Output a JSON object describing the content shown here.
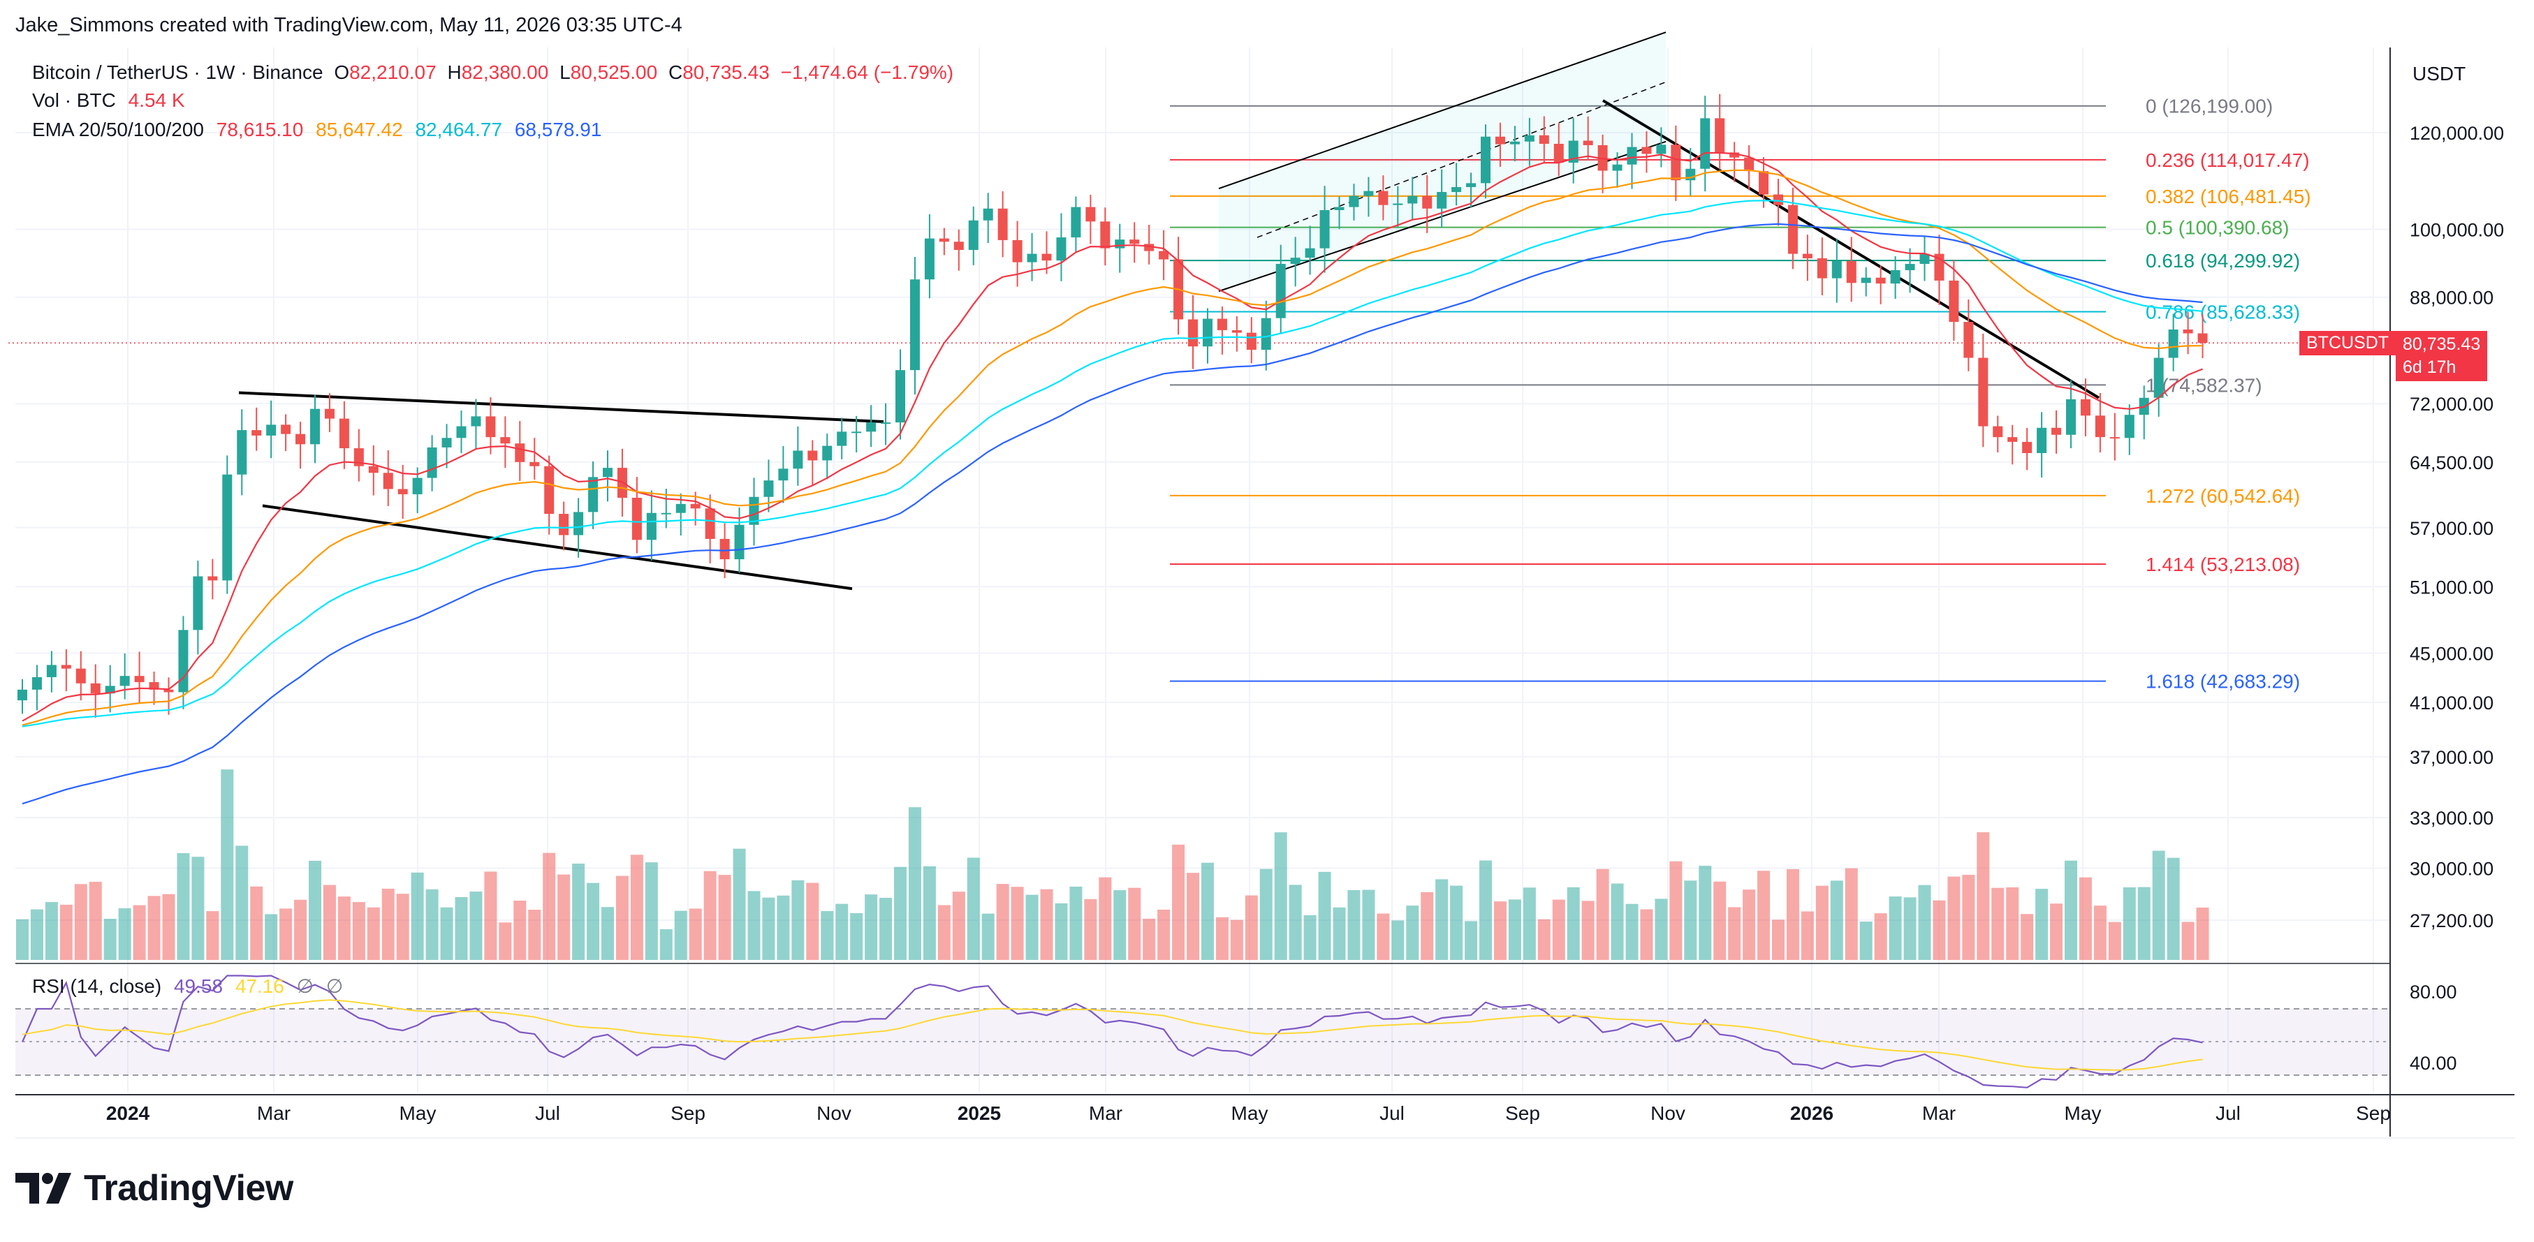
{
  "credit": "Jake_Simmons created with TradingView.com, May 11, 2026 03:35 UTC-4",
  "symbol": {
    "name": "Bitcoin / TetherUS · 1W · Binance",
    "o_label": "O",
    "o": "82,210.07",
    "h_label": "H",
    "h": "82,380.00",
    "l_label": "L",
    "l": "80,525.00",
    "c_label": "C",
    "c": "80,735.43",
    "change": "−1,474.64 (−1.79%)"
  },
  "vol": {
    "label": "Vol · BTC",
    "value": "4.54 K"
  },
  "ema": {
    "label": "EMA 20/50/100/200",
    "v20": "78,615.10",
    "v50": "85,647.42",
    "v100": "82,464.77",
    "v200": "68,578.91"
  },
  "rsi": {
    "label": "RSI (14, close)",
    "value": "49.58",
    "value2": "47.16",
    "na1": "∅",
    "na2": "∅"
  },
  "currency": "USDT",
  "price_tag": {
    "symbol": "BTCUSDT",
    "price": "80,735.43",
    "countdown": "6d 17h"
  },
  "colors": {
    "up": "#26a69a",
    "down": "#ef5350",
    "ema20": "#f23645",
    "ema50": "#ff9800",
    "ema100": "#00e5ff",
    "ema200": "#2962ff",
    "rsi": "#7e57c2",
    "rsi_ma": "#fdd835"
  },
  "y_axis": [
    "120,000.00",
    "100,000.00",
    "88,000.00",
    "72,000.00",
    "64,500.00",
    "57,000.00",
    "51,000.00",
    "45,000.00",
    "41,000.00",
    "37,000.00",
    "33,000.00",
    "30,000.00",
    "27,200.00"
  ],
  "rsi_axis": [
    "80.00",
    "40.00"
  ],
  "x_axis": [
    "2024",
    "Mar",
    "May",
    "Jul",
    "Sep",
    "Nov",
    "2025",
    "Mar",
    "May",
    "Jul",
    "Sep",
    "Nov",
    "2026",
    "Mar",
    "May",
    "Jul",
    "Sep"
  ],
  "fib_levels": [
    {
      "label": "0 (126,199.00)",
      "price": 126199,
      "color": "#787b86"
    },
    {
      "label": "0.236 (114,017.47)",
      "price": 114017.47,
      "color": "#f23645"
    },
    {
      "label": "0.382 (106,481.45)",
      "price": 106481.45,
      "color": "#ff9800"
    },
    {
      "label": "0.5 (100,390.68)",
      "price": 100390.68,
      "color": "#4caf50"
    },
    {
      "label": "0.618 (94,299.92)",
      "price": 94299.92,
      "color": "#089981"
    },
    {
      "label": "0.786 (85,628.33)",
      "price": 85628.33,
      "color": "#00bcd4"
    },
    {
      "label": "1 (74,582.37)",
      "price": 74582.37,
      "color": "#787b86"
    },
    {
      "label": "1.272 (60,542.64)",
      "price": 60542.64,
      "color": "#ff9800"
    },
    {
      "label": "1.414 (53,213.08)",
      "price": 53213.08,
      "color": "#f23645"
    },
    {
      "label": "1.618 (42,683.29)",
      "price": 42683.29,
      "color": "#2962ff"
    }
  ],
  "brand": "TradingView"
}
